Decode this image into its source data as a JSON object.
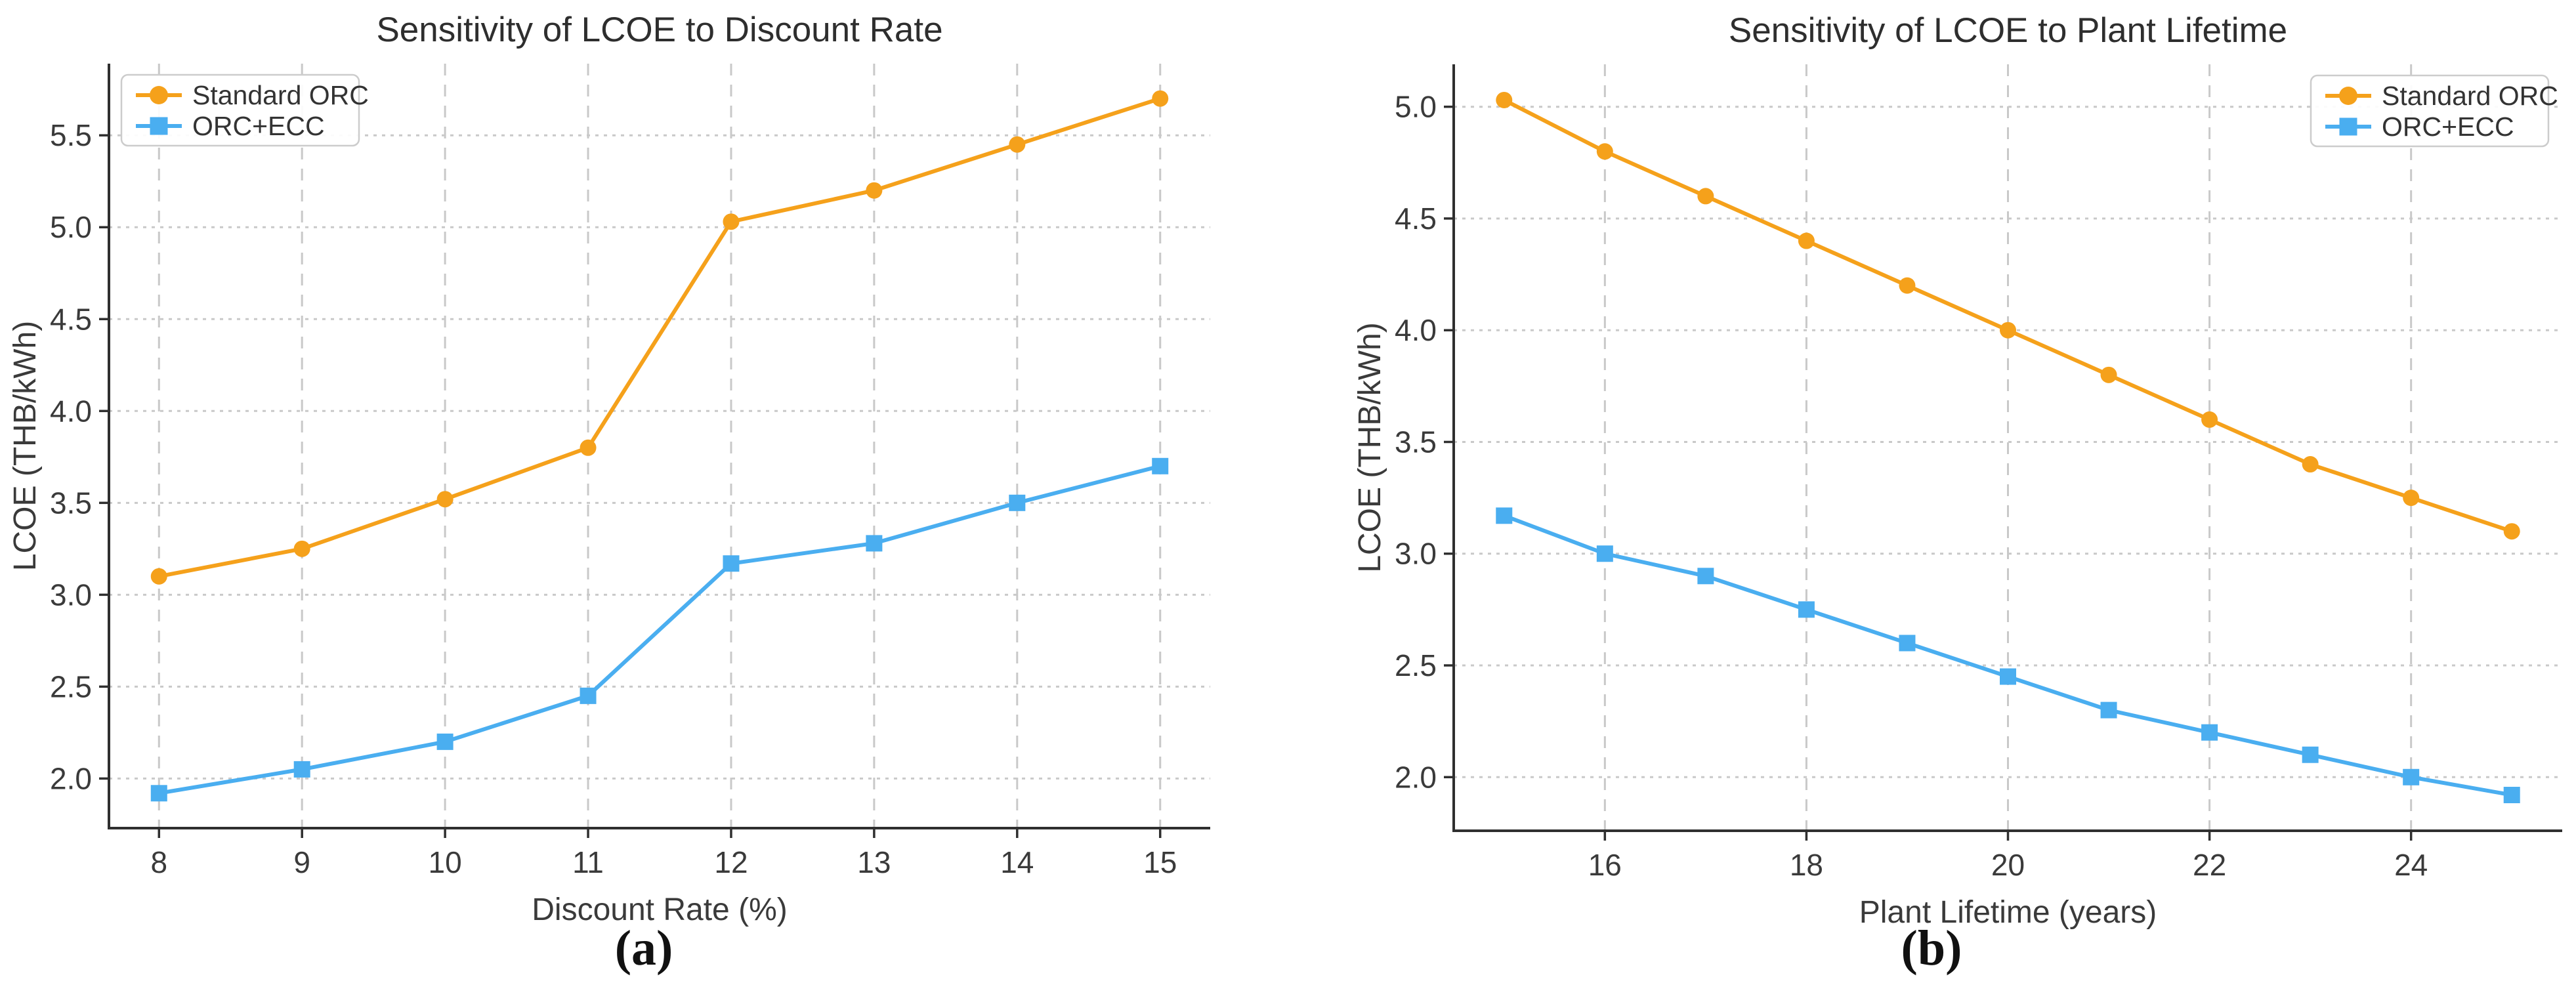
{
  "figure": {
    "background": "#ffffff",
    "text_color": "#3a3a3a",
    "spine_color": "#2f2f2f",
    "grid_color": "#c9c9c9"
  },
  "chart_data": [
    {
      "type": "line",
      "title": "Sensitivity of LCOE to Discount Rate",
      "xlabel": "Discount Rate (%)",
      "ylabel": "LCOE (THB/kWh)",
      "caption": "(a)",
      "x": [
        8,
        9,
        10,
        11,
        12,
        13,
        14,
        15
      ],
      "x_ticks": [
        8,
        9,
        10,
        11,
        12,
        13,
        14,
        15
      ],
      "y_ticks": [
        2.0,
        2.5,
        3.0,
        3.5,
        4.0,
        4.5,
        5.0,
        5.5
      ],
      "xlim": [
        7.65,
        15.35
      ],
      "ylim": [
        1.73,
        5.89
      ],
      "grid": true,
      "legend_position": "top-left",
      "series": [
        {
          "name": "Standard ORC",
          "marker": "circle",
          "color": "#F5A11B",
          "values": [
            3.1,
            3.25,
            3.52,
            3.8,
            5.03,
            5.2,
            5.45,
            5.7
          ]
        },
        {
          "name": "ORC+ECC",
          "marker": "square",
          "color": "#4AAEF0",
          "values": [
            1.92,
            2.05,
            2.2,
            2.45,
            3.17,
            3.28,
            3.5,
            3.7
          ]
        }
      ]
    },
    {
      "type": "line",
      "title": "Sensitivity of LCOE to Plant Lifetime",
      "xlabel": "Plant Lifetime (years)",
      "ylabel": "LCOE (THB/kWh)",
      "caption": "(b)",
      "x": [
        15,
        16,
        17,
        18,
        19,
        20,
        21,
        22,
        23,
        24,
        25
      ],
      "x_ticks": [
        16,
        18,
        20,
        22,
        24
      ],
      "y_ticks": [
        2.0,
        2.5,
        3.0,
        3.5,
        4.0,
        4.5,
        5.0
      ],
      "xlim": [
        14.5,
        25.5
      ],
      "ylim": [
        1.76,
        5.19
      ],
      "grid": true,
      "legend_position": "top-right",
      "series": [
        {
          "name": "Standard ORC",
          "marker": "circle",
          "color": "#F5A11B",
          "values": [
            5.03,
            4.8,
            4.6,
            4.4,
            4.2,
            4.0,
            3.8,
            3.6,
            3.4,
            3.25,
            3.1
          ]
        },
        {
          "name": "ORC+ECC",
          "marker": "square",
          "color": "#4AAEF0",
          "values": [
            3.17,
            3.0,
            2.9,
            2.75,
            2.6,
            2.45,
            2.3,
            2.2,
            2.1,
            2.0,
            1.92
          ]
        }
      ]
    }
  ]
}
